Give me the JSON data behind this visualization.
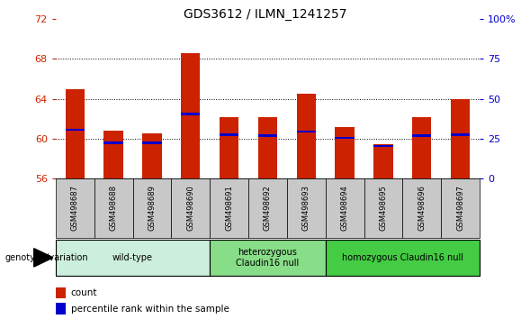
{
  "title": "GDS3612 / ILMN_1241257",
  "samples": [
    "GSM498687",
    "GSM498688",
    "GSM498689",
    "GSM498690",
    "GSM498691",
    "GSM498692",
    "GSM498693",
    "GSM498694",
    "GSM498695",
    "GSM498696",
    "GSM498697"
  ],
  "red_values": [
    65.0,
    60.8,
    60.5,
    68.6,
    62.2,
    62.2,
    64.5,
    61.2,
    59.5,
    62.2,
    64.0
  ],
  "blue_values": [
    60.9,
    59.6,
    59.6,
    62.5,
    60.4,
    60.3,
    60.7,
    60.1,
    59.3,
    60.3,
    60.4
  ],
  "ymin": 56,
  "ymax": 72,
  "yticks_left": [
    56,
    60,
    64,
    68,
    72
  ],
  "yticks_right": [
    0,
    25,
    50,
    75,
    100
  ],
  "gridlines": [
    60,
    64,
    68
  ],
  "groups": [
    {
      "label": "wild-type",
      "start": 0,
      "end": 3,
      "color": "#cceedd"
    },
    {
      "label": "heterozygous\nClaudin16 null",
      "start": 4,
      "end": 6,
      "color": "#88dd88"
    },
    {
      "label": "homozygous Claudin16 null",
      "start": 7,
      "end": 10,
      "color": "#44cc44"
    }
  ],
  "bar_color": "#cc2200",
  "blue_color": "#0000cc",
  "bar_width": 0.5,
  "tick_color": "#cc2200",
  "right_tick_color": "#0000cc",
  "background_xtick": "#c8c8c8",
  "legend_count": "count",
  "legend_pct": "percentile rank within the sample",
  "genotype_label": "genotype/variation"
}
